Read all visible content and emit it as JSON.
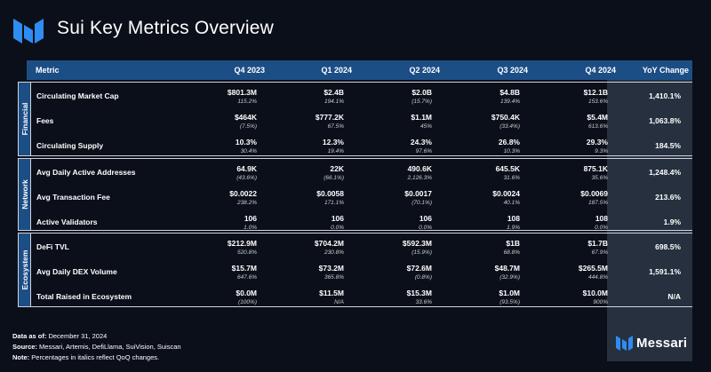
{
  "title": "Sui Key Metrics Overview",
  "brand": "Messari",
  "colors": {
    "background": "#0b0f19",
    "header": "#1c4e86",
    "yoy_column": "#26303f",
    "border": "#cfd3da"
  },
  "header": {
    "metric": "Metric",
    "periods": [
      "Q4 2023",
      "Q1 2024",
      "Q2 2024",
      "Q3 2024",
      "Q4 2024"
    ],
    "yoy": "YoY Change"
  },
  "sections": [
    {
      "label": "Financial",
      "rows": [
        {
          "metric": "Circulating Market Cap",
          "values": [
            "$801.3M",
            "$2.4B",
            "$2.0B",
            "$4.8B",
            "$12.1B"
          ],
          "qoq": [
            "115.2%",
            "194.1%",
            "(15.7%)",
            "139.4%",
            "153.6%"
          ],
          "yoy": "1,410.1%"
        },
        {
          "metric": "Fees",
          "values": [
            "$464K",
            "$777.2K",
            "$1.1M",
            "$750.4K",
            "$5.4M"
          ],
          "qoq": [
            "(7.5%)",
            "67.5%",
            "45%",
            "(33.4%)",
            "613.6%"
          ],
          "yoy": "1,063.8%"
        },
        {
          "metric": "Circulating Supply",
          "values": [
            "10.3%",
            "12.3%",
            "24.3%",
            "26.8%",
            "29.3%"
          ],
          "qoq": [
            "30.4%",
            "19.4%",
            "97.6%",
            "10.3%",
            "9.3%"
          ],
          "yoy": "184.5%"
        }
      ]
    },
    {
      "label": "Network",
      "rows": [
        {
          "metric": "Avg Daily Active Addresses",
          "values": [
            "64.9K",
            "22K",
            "490.6K",
            "645.5K",
            "875.1K"
          ],
          "qoq": [
            "(43.6%)",
            "(66.1%)",
            "2,126.3%",
            "31.6%",
            "35.6%"
          ],
          "yoy": "1,248.4%"
        },
        {
          "metric": "Avg Transaction Fee",
          "values": [
            "$0.0022",
            "$0.0058",
            "$0.0017",
            "$0.0024",
            "$0.0069"
          ],
          "qoq": [
            "238.2%",
            "171.1%",
            "(70.1%)",
            "40.1%",
            "187.5%"
          ],
          "yoy": "213.6%"
        },
        {
          "metric": "Active Validators",
          "values": [
            "106",
            "106",
            "106",
            "108",
            "108"
          ],
          "qoq": [
            "1.0%",
            "0.0%",
            "0.0%",
            "1.9%",
            "0.0%"
          ],
          "yoy": "1.9%"
        }
      ]
    },
    {
      "label": "Ecosystem",
      "rows": [
        {
          "metric": "DeFi TVL",
          "values": [
            "$212.9M",
            "$704.2M",
            "$592.3M",
            "$1B",
            "$1.7B"
          ],
          "qoq": [
            "520.8%",
            "230.8%",
            "(15.9%)",
            "68.8%",
            "67.9%"
          ],
          "yoy": "698.5%"
        },
        {
          "metric": "Avg Daily DEX Volume",
          "values": [
            "$15.7M",
            "$73.2M",
            "$72.6M",
            "$48.7M",
            "$265.5M"
          ],
          "qoq": [
            "647.6%",
            "365.8%",
            "(0.8%)",
            "(32.9%)",
            "444.8%"
          ],
          "yoy": "1,591.1%"
        },
        {
          "metric": "Total Raised in Ecosystem",
          "values": [
            "$0.0M",
            "$11.5M",
            "$15.3M",
            "$1.0M",
            "$10.0M"
          ],
          "qoq": [
            "(100%)",
            "N/A",
            "33.6%",
            "(93.5%)",
            "900%"
          ],
          "yoy": "N/A"
        }
      ]
    }
  ],
  "footer": {
    "data_as_of_label": "Data as of:",
    "data_as_of": "December 31, 2024",
    "source_label": "Source:",
    "source": "Messari, Artemis, DefiLlama, SuiVision, Suiscan",
    "note_label": "Note:",
    "note": "Percentages in italics reflect QoQ changes."
  }
}
